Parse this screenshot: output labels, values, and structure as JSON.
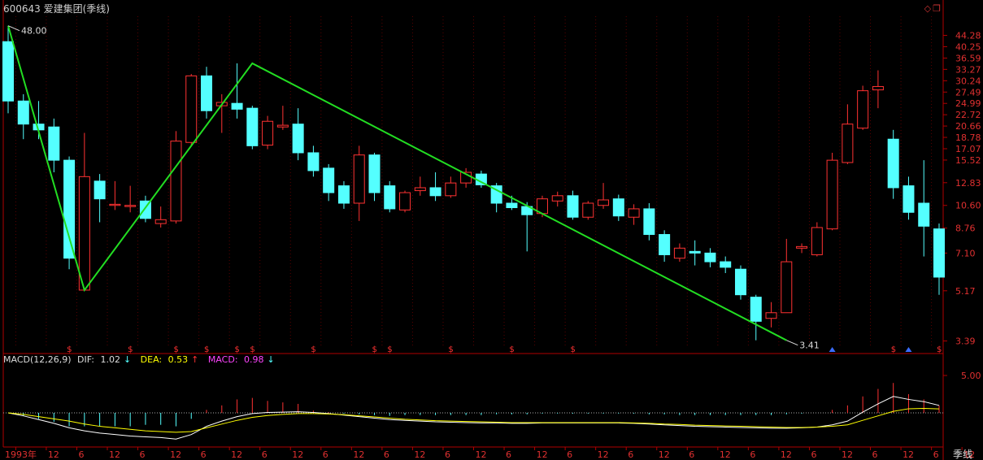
{
  "header": {
    "title": "600643 爱建集团(季线)",
    "icons": [
      "diamond-icon",
      "restore-icon"
    ]
  },
  "colors": {
    "up": "#ff3232",
    "down": "#54ffff",
    "zigzag": "#22dd22",
    "axis": "#b00000",
    "grid": "#5a0000",
    "dif": "#ffffff",
    "dea": "#ffff00",
    "macd": "#ff44ff"
  },
  "macd_legend": {
    "name": "MACD(12,26,9)",
    "dif_label": "DIF:",
    "dif_value": "1.02",
    "dif_arrow": "↓",
    "dea_label": "DEA:",
    "dea_value": "0.53",
    "dea_arrow": "↑",
    "macd_label": "MACD:",
    "macd_value": "0.98",
    "macd_arrow": "↓"
  },
  "period_label": "季线",
  "chart_data": [
    {
      "type": "candlestick",
      "scale": "log",
      "ylim": [
        3.2,
        52
      ],
      "y_ticks": [
        "44.28",
        "40.25",
        "36.59",
        "33.27",
        "30.24",
        "27.49",
        "24.99",
        "22.72",
        "20.66",
        "18.78",
        "17.07",
        "15.52",
        "12.83",
        "10.60",
        "8.76",
        "7.10",
        "5.17",
        "3.39"
      ],
      "x_labels": [
        "1993年",
        "12",
        "6",
        "12",
        "6",
        "12",
        "6",
        "12",
        "6",
        "12",
        "6",
        "12",
        "6",
        "12",
        "6",
        "12",
        "6",
        "12",
        "6",
        "12",
        "6",
        "12",
        "6",
        "12",
        "6",
        "12",
        "6",
        "12",
        "6",
        "12",
        "6",
        "12"
      ],
      "annotations": [
        {
          "text": "48.00",
          "x": 0,
          "y": 48.0
        },
        {
          "text": "3.41",
          "x": 51,
          "y": 3.41
        }
      ],
      "candles": [
        {
          "o": 42,
          "c": 25.5,
          "h": 48,
          "l": 23
        },
        {
          "o": 25.5,
          "c": 21,
          "h": 27,
          "l": 18.5
        },
        {
          "o": 21,
          "c": 20,
          "h": 25.5,
          "l": 18.5
        },
        {
          "o": 20.5,
          "c": 15.5,
          "h": 22,
          "l": 14
        },
        {
          "o": 15.5,
          "c": 6.8,
          "h": 16,
          "l": 6.2
        },
        {
          "o": 5.2,
          "c": 13.5,
          "h": 19.5,
          "l": 5.2
        },
        {
          "o": 13,
          "c": 11.2,
          "h": 13.8,
          "l": 9.2
        },
        {
          "o": 10.6,
          "c": 10.7,
          "h": 13,
          "l": 10.2
        },
        {
          "o": 10.5,
          "c": 10.6,
          "h": 12.5,
          "l": 10
        },
        {
          "o": 11,
          "c": 9.5,
          "h": 11.5,
          "l": 9.2
        },
        {
          "o": 9.1,
          "c": 9.4,
          "h": 10.5,
          "l": 8.8
        },
        {
          "o": 9.3,
          "c": 18.2,
          "h": 19.8,
          "l": 9.1
        },
        {
          "o": 18,
          "c": 31.5,
          "h": 32,
          "l": 17.5
        },
        {
          "o": 31.5,
          "c": 23.5,
          "h": 34,
          "l": 22
        },
        {
          "o": 24.5,
          "c": 25.2,
          "h": 27,
          "l": 19.5
        },
        {
          "o": 25,
          "c": 23.8,
          "h": 35,
          "l": 22
        },
        {
          "o": 24,
          "c": 17.5,
          "h": 24.5,
          "l": 17
        },
        {
          "o": 17.6,
          "c": 21.5,
          "h": 22.5,
          "l": 17
        },
        {
          "o": 20.5,
          "c": 20.8,
          "h": 24.5,
          "l": 20
        },
        {
          "o": 21,
          "c": 16.5,
          "h": 24,
          "l": 15.5
        },
        {
          "o": 16.5,
          "c": 14.2,
          "h": 17.5,
          "l": 13.5
        },
        {
          "o": 14.5,
          "c": 11.8,
          "h": 15,
          "l": 11
        },
        {
          "o": 12.5,
          "c": 10.8,
          "h": 13,
          "l": 10.3
        },
        {
          "o": 10.8,
          "c": 16.2,
          "h": 17.5,
          "l": 9.3
        },
        {
          "o": 16.2,
          "c": 11.8,
          "h": 16.5,
          "l": 11
        },
        {
          "o": 12.5,
          "c": 10.3,
          "h": 13,
          "l": 10
        },
        {
          "o": 10.2,
          "c": 11.8,
          "h": 12,
          "l": 10
        },
        {
          "o": 12,
          "c": 12.3,
          "h": 13.5,
          "l": 11.5
        },
        {
          "o": 12.3,
          "c": 11.5,
          "h": 14,
          "l": 11
        },
        {
          "o": 11.5,
          "c": 12.8,
          "h": 13.5,
          "l": 11.3
        },
        {
          "o": 12.8,
          "c": 14,
          "h": 14.5,
          "l": 12.3
        },
        {
          "o": 13.8,
          "c": 12.6,
          "h": 14.2,
          "l": 12.3
        },
        {
          "o": 12.5,
          "c": 10.8,
          "h": 12.8,
          "l": 10
        },
        {
          "o": 10.8,
          "c": 10.4,
          "h": 11.5,
          "l": 10.2
        },
        {
          "o": 10.5,
          "c": 9.8,
          "h": 10.9,
          "l": 7.2
        },
        {
          "o": 9.9,
          "c": 11.2,
          "h": 11.5,
          "l": 9.6
        },
        {
          "o": 11,
          "c": 11.5,
          "h": 11.9,
          "l": 10.5
        },
        {
          "o": 11.5,
          "c": 9.6,
          "h": 12,
          "l": 9.4
        },
        {
          "o": 9.6,
          "c": 10.8,
          "h": 11,
          "l": 9.4
        },
        {
          "o": 10.6,
          "c": 11.1,
          "h": 12.8,
          "l": 10.3
        },
        {
          "o": 11.2,
          "c": 9.7,
          "h": 11.6,
          "l": 9.3
        },
        {
          "o": 9.6,
          "c": 10.3,
          "h": 10.7,
          "l": 9
        },
        {
          "o": 10.3,
          "c": 8.3,
          "h": 10.8,
          "l": 7.9
        },
        {
          "o": 8.3,
          "c": 7,
          "h": 8.6,
          "l": 6.6
        },
        {
          "o": 6.8,
          "c": 7.4,
          "h": 7.7,
          "l": 6.6
        },
        {
          "o": 7.2,
          "c": 7.1,
          "h": 7.9,
          "l": 6.4
        },
        {
          "o": 7.1,
          "c": 6.6,
          "h": 7.4,
          "l": 6.3
        },
        {
          "o": 6.6,
          "c": 6.3,
          "h": 6.9,
          "l": 6
        },
        {
          "o": 6.2,
          "c": 5,
          "h": 6.4,
          "l": 4.8
        },
        {
          "o": 4.9,
          "c": 4,
          "h": 5,
          "l": 3.41
        },
        {
          "o": 4.1,
          "c": 4.3,
          "h": 4.7,
          "l": 3.8
        },
        {
          "o": 4.3,
          "c": 6.6,
          "h": 8,
          "l": 4.3
        },
        {
          "o": 7.4,
          "c": 7.5,
          "h": 7.7,
          "l": 7.1
        },
        {
          "o": 7,
          "c": 8.8,
          "h": 9.2,
          "l": 6.9
        },
        {
          "o": 8.7,
          "c": 15.5,
          "h": 16.5,
          "l": 8.6
        },
        {
          "o": 15.2,
          "c": 21,
          "h": 24.8,
          "l": 15
        },
        {
          "o": 20.3,
          "c": 27.8,
          "h": 29,
          "l": 20
        },
        {
          "o": 28,
          "c": 28.8,
          "h": 33,
          "l": 24
        },
        {
          "o": 18.5,
          "c": 12.3,
          "h": 20,
          "l": 11.2
        },
        {
          "o": 12.5,
          "c": 10,
          "h": 13.5,
          "l": 9.4
        },
        {
          "o": 10.8,
          "c": 8.9,
          "h": 15.5,
          "l": 6.9
        },
        {
          "o": 8.7,
          "c": 5.8,
          "h": 9.1,
          "l": 5
        }
      ],
      "zigzag": [
        {
          "x": 0,
          "y": 48
        },
        {
          "x": 5,
          "y": 5.2
        },
        {
          "x": 16,
          "y": 35
        },
        {
          "x": 51,
          "y": 3.41
        }
      ],
      "markers": [
        {
          "x": 4,
          "kind": "dollar"
        },
        {
          "x": 8,
          "kind": "dollar"
        },
        {
          "x": 11,
          "kind": "dollar"
        },
        {
          "x": 13,
          "kind": "dollar"
        },
        {
          "x": 15,
          "kind": "dollar"
        },
        {
          "x": 16,
          "kind": "dollar"
        },
        {
          "x": 20,
          "kind": "dollar"
        },
        {
          "x": 24,
          "kind": "dollar"
        },
        {
          "x": 25,
          "kind": "dollar"
        },
        {
          "x": 29,
          "kind": "dollar"
        },
        {
          "x": 33,
          "kind": "dollar"
        },
        {
          "x": 37,
          "kind": "dollar"
        },
        {
          "x": 54,
          "kind": "arrow"
        },
        {
          "x": 58,
          "kind": "dollar"
        },
        {
          "x": 59,
          "kind": "arrow"
        },
        {
          "x": 61,
          "kind": "dollar"
        }
      ]
    },
    {
      "type": "macd",
      "y_ticks": [
        "5.00"
      ],
      "ylim": [
        -3.5,
        7
      ],
      "dif": [
        0,
        -0.4,
        -0.9,
        -1.4,
        -2.0,
        -2.4,
        -2.7,
        -2.9,
        -3.1,
        -3.2,
        -3.3,
        -3.5,
        -2.9,
        -1.8,
        -1.1,
        -0.5,
        -0.1,
        0.05,
        0.1,
        0.15,
        0.05,
        -0.1,
        -0.3,
        -0.5,
        -0.7,
        -0.9,
        -1.0,
        -1.1,
        -1.2,
        -1.25,
        -1.3,
        -1.35,
        -1.35,
        -1.4,
        -1.4,
        -1.35,
        -1.35,
        -1.35,
        -1.35,
        -1.35,
        -1.35,
        -1.4,
        -1.5,
        -1.6,
        -1.7,
        -1.8,
        -1.85,
        -1.9,
        -1.95,
        -2.0,
        -2.05,
        -2.05,
        -2.0,
        -1.9,
        -1.6,
        -1.1,
        0.1,
        1.2,
        2.2,
        1.8,
        1.5,
        1.0
      ],
      "dea": [
        0,
        -0.2,
        -0.5,
        -0.8,
        -1.1,
        -1.5,
        -1.8,
        -2.0,
        -2.2,
        -2.4,
        -2.5,
        -2.6,
        -2.5,
        -2.0,
        -1.5,
        -1.0,
        -0.6,
        -0.35,
        -0.2,
        -0.1,
        -0.1,
        -0.15,
        -0.25,
        -0.4,
        -0.55,
        -0.7,
        -0.85,
        -0.95,
        -1.05,
        -1.1,
        -1.15,
        -1.2,
        -1.25,
        -1.3,
        -1.3,
        -1.3,
        -1.3,
        -1.3,
        -1.3,
        -1.3,
        -1.3,
        -1.35,
        -1.4,
        -1.5,
        -1.55,
        -1.65,
        -1.7,
        -1.75,
        -1.8,
        -1.85,
        -1.9,
        -1.95,
        -1.95,
        -1.9,
        -1.8,
        -1.6,
        -1.0,
        -0.4,
        0.2,
        0.55,
        0.6,
        0.53
      ],
      "macd": [
        0,
        -0.4,
        -0.8,
        -1.2,
        -1.8,
        -1.8,
        -1.8,
        -1.8,
        -1.8,
        -1.6,
        -1.6,
        -1.8,
        -0.8,
        0.4,
        1.0,
        1.8,
        2.0,
        1.6,
        1.4,
        1.2,
        0.3,
        0.1,
        -0.1,
        -0.2,
        -0.3,
        -0.4,
        -0.3,
        -0.3,
        -0.3,
        -0.3,
        -0.3,
        -0.3,
        -0.2,
        -0.2,
        -0.2,
        -0.1,
        -0.1,
        -0.1,
        -0.1,
        -0.1,
        -0.1,
        -0.1,
        -0.2,
        -0.2,
        -0.3,
        -0.3,
        -0.3,
        -0.3,
        -0.3,
        -0.3,
        -0.3,
        -0.2,
        -0.1,
        0,
        0.4,
        1.0,
        2.2,
        3.2,
        4.0,
        2.5,
        1.8,
        0.98
      ]
    }
  ]
}
